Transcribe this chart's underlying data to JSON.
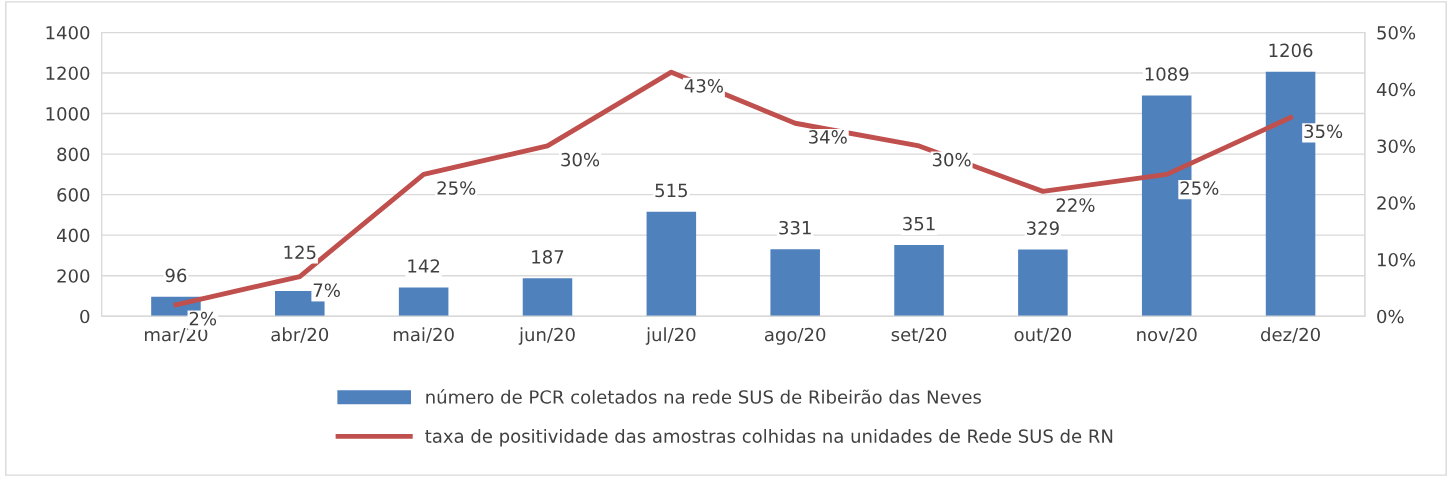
{
  "chart_data": {
    "type": "bar",
    "categories": [
      "mar/20",
      "abr/20",
      "mai/20",
      "jun/20",
      "jul/20",
      "ago/20",
      "set/20",
      "out/20",
      "nov/20",
      "dez/20"
    ],
    "series": [
      {
        "name": "número de PCR coletados na rede SUS de Ribeirão das Neves",
        "color": "#4f81bd",
        "values": [
          96,
          125,
          142,
          187,
          515,
          331,
          351,
          329,
          1089,
          1206
        ]
      },
      {
        "name": "taxa de positividade das amostras colhidas na unidades de Rede SUS de RN",
        "type": "line",
        "axis": "y2",
        "color": "#c0504d",
        "values": [
          2,
          7,
          25,
          30,
          43,
          34,
          30,
          22,
          25,
          35
        ],
        "value_labels": [
          "2%",
          "7%",
          "25%",
          "30%",
          "43%",
          "34%",
          "30%",
          "22%",
          "25%",
          "35%"
        ]
      }
    ],
    "ylim": [
      0,
      1400
    ],
    "yticks": [
      0,
      200,
      400,
      600,
      800,
      1000,
      1200,
      1400
    ],
    "y2lim": [
      0,
      50
    ],
    "y2ticks": [
      {
        "value": 0,
        "label": "0%"
      },
      {
        "value": 10,
        "label": "10%"
      },
      {
        "value": 20,
        "label": "20%"
      },
      {
        "value": 30,
        "label": "30%"
      },
      {
        "value": 40,
        "label": "40%"
      },
      {
        "value": 50,
        "label": "50%"
      }
    ],
    "data_labels": true,
    "grid": "y",
    "legend": "bottom",
    "marker": "none",
    "line_style": "solid"
  }
}
